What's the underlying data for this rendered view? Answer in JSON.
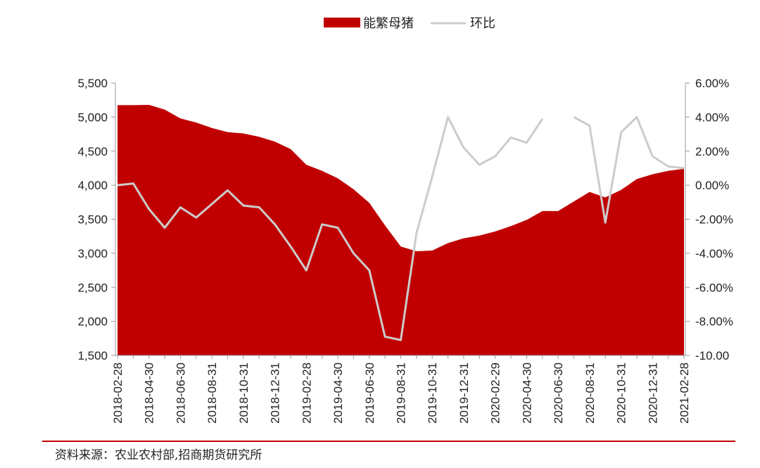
{
  "chart_data": {
    "type": "area",
    "title": "",
    "legend": {
      "placement": "top-center"
    },
    "series": [
      {
        "name": "能繁母猪",
        "type": "area",
        "axis": "left",
        "color": "#c00000",
        "values": [
          5175,
          5175,
          5180,
          5110,
          4980,
          4920,
          4840,
          4780,
          4760,
          4710,
          4640,
          4530,
          4300,
          4210,
          4100,
          3940,
          3740,
          3410,
          3100,
          3030,
          3040,
          3150,
          3220,
          3260,
          3320,
          3400,
          3490,
          3620,
          3620,
          3760,
          3900,
          3820,
          3930,
          4090,
          4160,
          4210,
          4240
        ]
      },
      {
        "name": "环比",
        "type": "line",
        "axis": "right",
        "color": "#cccccc",
        "values": [
          0.0,
          0.1,
          -1.4,
          -2.5,
          -1.3,
          -1.9,
          -1.1,
          -0.3,
          -1.2,
          -1.3,
          -2.3,
          -3.6,
          -5.0,
          -2.3,
          -2.5,
          -4.0,
          -5.0,
          -8.9,
          -9.1,
          -2.8,
          0.5,
          4.0,
          2.2,
          1.2,
          1.7,
          2.8,
          2.5,
          3.9,
          null,
          4.0,
          3.5,
          -2.2,
          3.1,
          4.0,
          1.7,
          1.1,
          1.0
        ]
      }
    ],
    "x_tick_labels": [
      "2018-02-28",
      "2018-04-30",
      "2018-06-30",
      "2018-08-31",
      "2018-10-31",
      "2018-12-31",
      "2019-02-28",
      "2019-04-30",
      "2019-06-30",
      "2019-08-31",
      "2019-10-31",
      "2019-12-31",
      "2020-02-29",
      "2020-04-30",
      "2020-06-30",
      "2020-08-31",
      "2020-10-31",
      "2020-12-31",
      "2021-02-28"
    ],
    "y_left": {
      "min": 1500,
      "max": 5500,
      "ticks": [
        "1,500",
        "2,000",
        "2,500",
        "3,000",
        "3,500",
        "4,000",
        "4,500",
        "5,000",
        "5,500"
      ]
    },
    "y_right": {
      "min": -10,
      "max": 6,
      "ticks": [
        "-10.00",
        "-8.00%",
        "-6.00%",
        "-4.00%",
        "-2.00%",
        "0.00%",
        "2.00%",
        "4.00%",
        "6.00%"
      ]
    },
    "grid": false
  },
  "source": "资料来源：农业农村部,招商期货研究所"
}
